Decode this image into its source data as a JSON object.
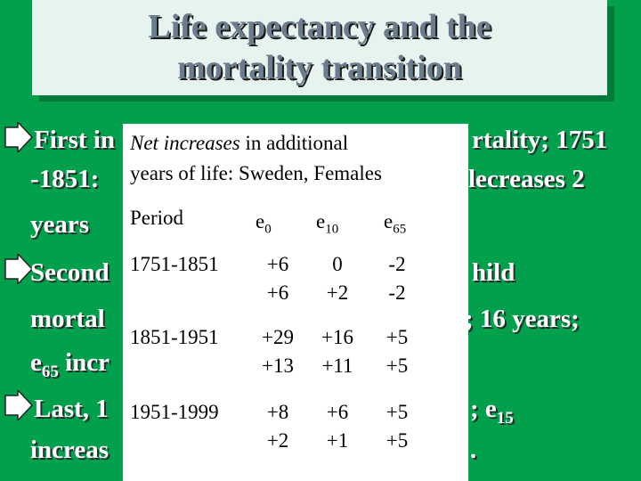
{
  "slide": {
    "title_line1": "Life expectancy and the",
    "title_line2": "mortality transition",
    "bullets": [
      {
        "line1": "First in",
        "line1_right": "rtality; 1751",
        "line2_left": "-1851:",
        "line2_right": "lecreases 2",
        "line3": "years"
      },
      {
        "line1": "Second",
        "line1_right": "hild",
        "line2_left": "mortal",
        "line2_right": "; 16 years;",
        "line3": "e",
        "line3_sub": "65",
        "line3_rest": " incr"
      },
      {
        "line1": "Last, 1",
        "line1_right": "; e",
        "line1_right_sub": "15",
        "line2_left": "increas",
        "line2_right": "."
      }
    ]
  },
  "table": {
    "heading_italic": "Net increases",
    "heading_rest": " in additional",
    "heading_line2": "years of life:  Sweden, Females",
    "col_period": "Period",
    "col_e0": "e",
    "col_e0_sub": "0",
    "col_e10": "e",
    "col_e10_sub": "10",
    "col_e65": "e",
    "col_e65_sub": "65",
    "rows": [
      {
        "period": "1751-1851",
        "v1": [
          "+6",
          "+6"
        ],
        "v2": [
          "0",
          "+2"
        ],
        "v3": [
          "-2",
          "-2"
        ]
      },
      {
        "period": "1851-1951",
        "v1": [
          "+29",
          "+13"
        ],
        "v2": [
          "+16",
          "+11"
        ],
        "v3": [
          "+5",
          "+5"
        ]
      },
      {
        "period": "1951-1999",
        "v1": [
          "+8",
          "+2"
        ],
        "v2": [
          "+6",
          "+1"
        ],
        "v3": [
          "+5",
          "+5"
        ]
      }
    ]
  },
  "colors": {
    "background": "#00a04c",
    "title_box": "#e7f3ef",
    "title_text": "#6b7d8c"
  },
  "icons": {
    "bullet": "arrow-right-icon"
  }
}
